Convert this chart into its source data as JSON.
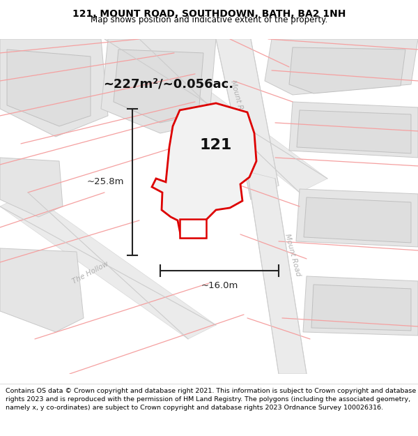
{
  "title": "121, MOUNT ROAD, SOUTHDOWN, BATH, BA2 1NH",
  "subtitle": "Map shows position and indicative extent of the property.",
  "footer": "Contains OS data © Crown copyright and database right 2021. This information is subject to Crown copyright and database rights 2023 and is reproduced with the permission of HM Land Registry. The polygons (including the associated geometry, namely x, y co-ordinates) are subject to Crown copyright and database rights 2023 Ordnance Survey 100026316.",
  "area_label": "~227m²/~0.056ac.",
  "width_label": "~16.0m",
  "height_label": "~25.8m",
  "number_label": "121",
  "title_fontsize": 10,
  "subtitle_fontsize": 8.5,
  "footer_fontsize": 6.8,
  "red_line_color": "#dd0000",
  "pink_line_color": "#f5a0a0",
  "road_label_color": "#b0b0b0",
  "block_fc": "#e8e8e8",
  "block_ec": "#cccccc",
  "road_fc": "#ebebeb",
  "road_ec": "#d0d0d0",
  "measure_color": "#222222"
}
